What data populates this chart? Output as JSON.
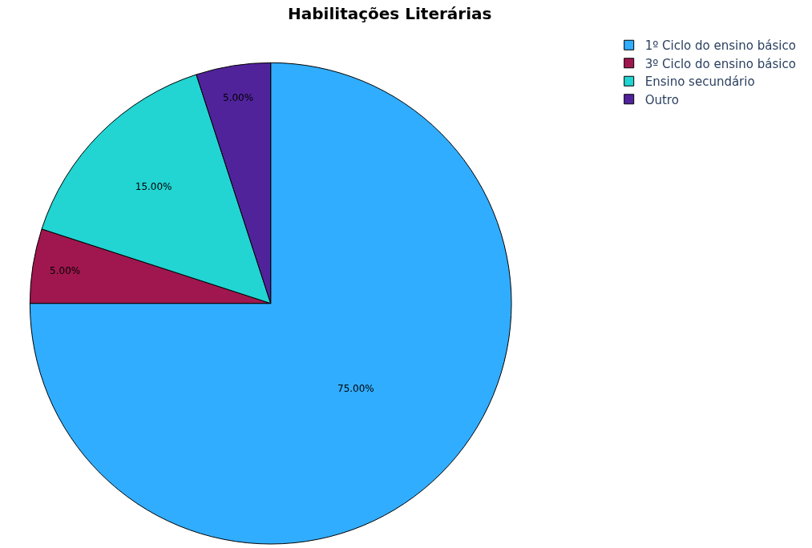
{
  "chart_data": {
    "type": "pie",
    "title": "Habilitações Literárias",
    "categories": [
      "1º Ciclo do ensino básico",
      "3º Ciclo do ensino básico",
      "Ensino secundário",
      "Outro"
    ],
    "values": [
      75,
      5,
      15,
      5
    ],
    "value_labels": [
      "75.00%",
      "5.00%",
      "15.00%",
      "5.00%"
    ],
    "colors": [
      "#31adff",
      "#a0174f",
      "#22d4d2",
      "#51239b"
    ],
    "legend": "top right"
  }
}
